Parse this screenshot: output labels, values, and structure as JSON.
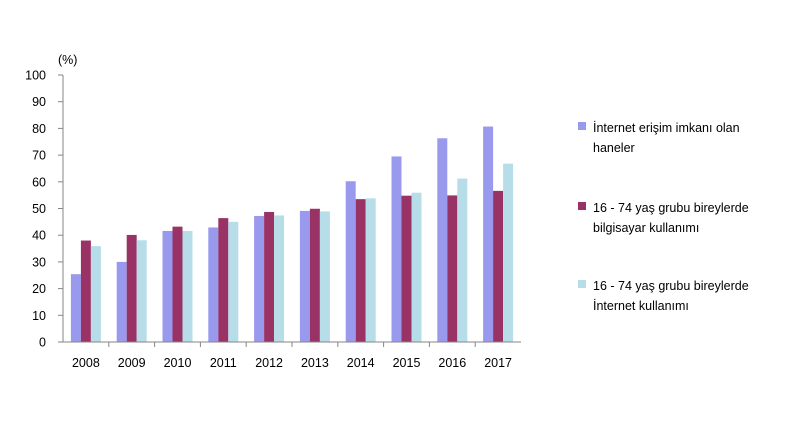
{
  "chart_data": {
    "type": "bar",
    "unit_label": "(%)",
    "categories": [
      "2008",
      "2009",
      "2010",
      "2011",
      "2012",
      "2013",
      "2014",
      "2015",
      "2016",
      "2017"
    ],
    "ylim": [
      0,
      100
    ],
    "yticks": [
      0,
      10,
      20,
      30,
      40,
      50,
      60,
      70,
      80,
      90,
      100
    ],
    "grid": false,
    "legend_position": "right",
    "series": [
      {
        "name": "İnternet erişim imkanı olan haneler",
        "color": "#9999ee",
        "values": [
          25.4,
          30.0,
          41.6,
          42.9,
          47.2,
          49.1,
          60.2,
          69.5,
          76.3,
          80.7
        ]
      },
      {
        "name": "16 - 74 yaş grubu bireylerde bilgisayar kullanımı",
        "color": "#993366",
        "values": [
          38.0,
          40.1,
          43.2,
          46.4,
          48.7,
          49.9,
          53.5,
          54.8,
          54.9,
          56.6
        ]
      },
      {
        "name": "16 - 74 yaş grubu bireylerde İnternet kullanımı",
        "color": "#b7dde8",
        "values": [
          35.9,
          38.1,
          41.6,
          45.0,
          47.4,
          48.9,
          53.8,
          55.9,
          61.2,
          66.8
        ]
      }
    ]
  },
  "legend": {
    "items": [
      {
        "lines": [
          "İnternet erişim imkanı olan",
          "haneler"
        ]
      },
      {
        "lines": [
          "16 - 74 yaş grubu bireylerde",
          "bilgisayar kullanımı"
        ]
      },
      {
        "lines": [
          "16 - 74 yaş grubu bireylerde",
          "İnternet kullanımı"
        ]
      }
    ]
  }
}
